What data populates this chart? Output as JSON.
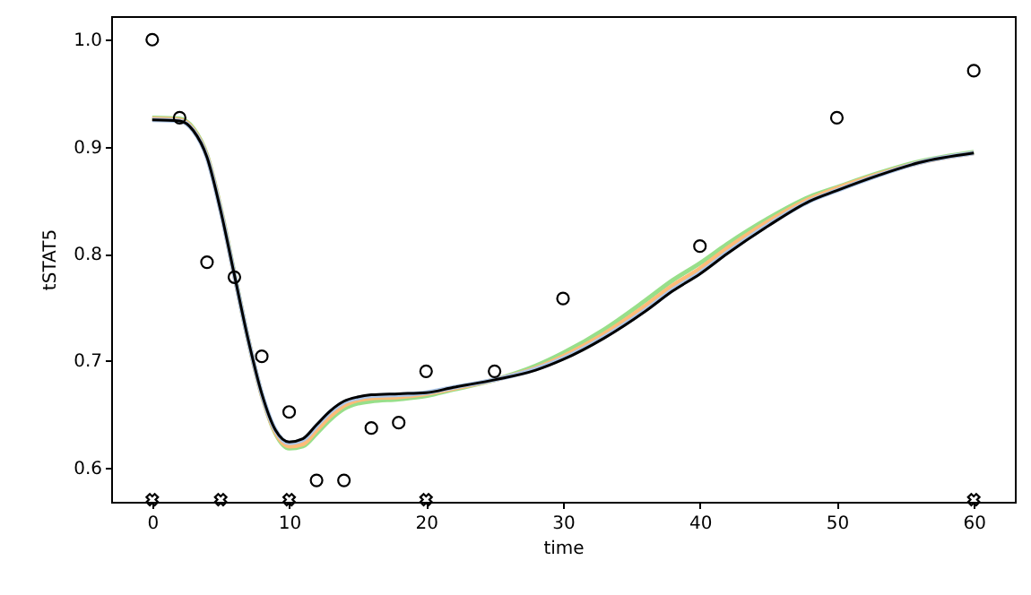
{
  "chart_data": {
    "type": "line",
    "xlabel": "time",
    "ylabel": "tSTAT5",
    "xlim": [
      -3,
      63
    ],
    "ylim": [
      0.568,
      1.022
    ],
    "xticks": [
      0,
      10,
      20,
      30,
      40,
      50,
      60
    ],
    "yticks": [
      0.6,
      0.7,
      0.8,
      0.9,
      {
        "value": 1.0,
        "label": "1.0"
      }
    ],
    "x": [
      0,
      2,
      3,
      4,
      5,
      6,
      7,
      8,
      9,
      10,
      11,
      12,
      13,
      14,
      15,
      16,
      18,
      20,
      22,
      25,
      28,
      30,
      33,
      36,
      38,
      40,
      42,
      45,
      48,
      50,
      53,
      56,
      60
    ],
    "series": [
      {
        "color": "#98df8a",
        "values": [
          0.927,
          0.926,
          0.917,
          0.892,
          0.842,
          0.781,
          0.72,
          0.668,
          0.632,
          0.618,
          0.62,
          0.632,
          0.645,
          0.655,
          0.66,
          0.662,
          0.664,
          0.667,
          0.673,
          0.682,
          0.695,
          0.707,
          0.729,
          0.756,
          0.775,
          0.791,
          0.809,
          0.833,
          0.853,
          0.862,
          0.875,
          0.886,
          0.895
        ]
      },
      {
        "color": "#ffbb78",
        "values": [
          0.926,
          0.925,
          0.916,
          0.891,
          0.841,
          0.78,
          0.72,
          0.668,
          0.633,
          0.62,
          0.622,
          0.635,
          0.648,
          0.658,
          0.663,
          0.665,
          0.666,
          0.669,
          0.674,
          0.682,
          0.693,
          0.704,
          0.725,
          0.751,
          0.77,
          0.786,
          0.805,
          0.83,
          0.851,
          0.861,
          0.874,
          0.885,
          0.894
        ]
      },
      {
        "color": "#aec7e8",
        "values": [
          0.925,
          0.924,
          0.915,
          0.89,
          0.84,
          0.78,
          0.72,
          0.669,
          0.635,
          0.623,
          0.626,
          0.639,
          0.652,
          0.661,
          0.665,
          0.667,
          0.668,
          0.67,
          0.675,
          0.682,
          0.692,
          0.702,
          0.722,
          0.747,
          0.766,
          0.782,
          0.801,
          0.827,
          0.849,
          0.859,
          0.873,
          0.885,
          0.894
        ]
      },
      {
        "color": "#000000",
        "values": [
          0.925,
          0.924,
          0.915,
          0.89,
          0.84,
          0.78,
          0.72,
          0.669,
          0.635,
          0.624,
          0.627,
          0.64,
          0.653,
          0.662,
          0.666,
          0.668,
          0.669,
          0.67,
          0.675,
          0.682,
          0.691,
          0.701,
          0.721,
          0.746,
          0.765,
          0.781,
          0.8,
          0.826,
          0.849,
          0.859,
          0.873,
          0.885,
          0.894
        ]
      },
      {
        "type": "scatter",
        "marker": "circle",
        "color": "#000000",
        "x": [
          0,
          2,
          4,
          6,
          8,
          10,
          12,
          14,
          16,
          18,
          20,
          25,
          30,
          40,
          50,
          60
        ],
        "values": [
          1.0,
          0.927,
          0.792,
          0.778,
          0.704,
          0.652,
          0.588,
          0.588,
          0.637,
          0.642,
          0.69,
          0.69,
          0.758,
          0.807,
          0.927,
          0.971
        ]
      },
      {
        "type": "scatter",
        "marker": "cross",
        "color": "#000000",
        "x": [
          0,
          5,
          10,
          20,
          60
        ],
        "values": [
          0.57,
          0.57,
          0.57,
          0.57,
          0.57
        ]
      }
    ]
  }
}
